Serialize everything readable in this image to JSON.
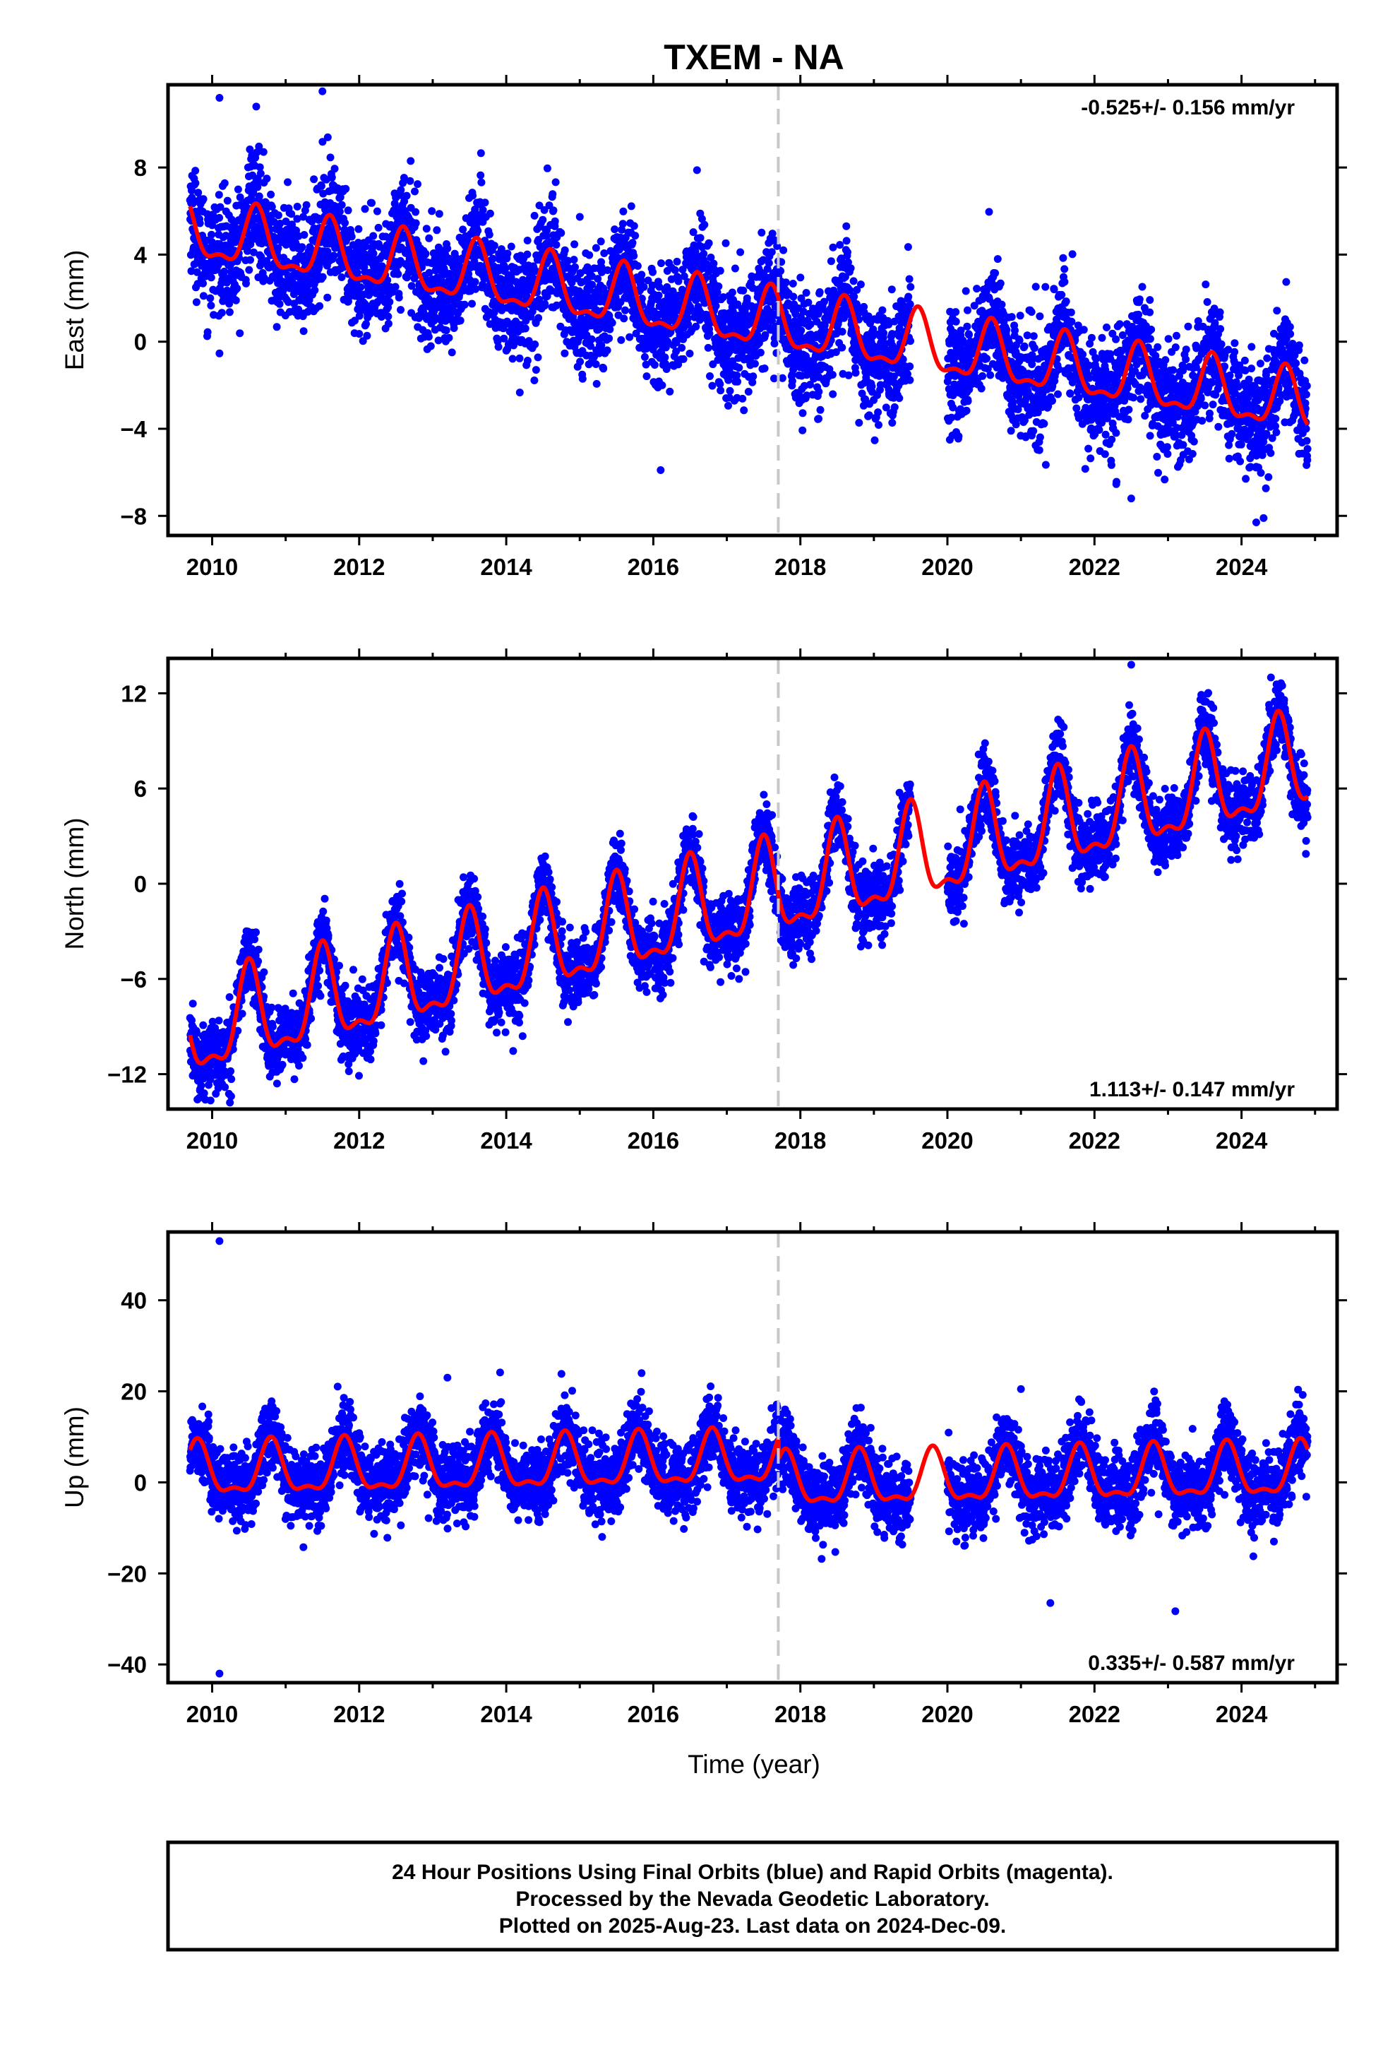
{
  "chart_data": [
    {
      "type": "scatter",
      "title": "TXEM - NA",
      "ylabel": "East (mm)",
      "xlabel": "",
      "xlim": [
        2009.4,
        2025.3
      ],
      "ylim": [
        -8.9,
        11.8
      ],
      "x_ticks": [
        2010,
        2012,
        2014,
        2016,
        2018,
        2020,
        2022,
        2024
      ],
      "y_ticks": [
        -8,
        -4,
        0,
        4,
        8
      ],
      "rate_label": "-0.525+/- 0.156 mm/yr",
      "rate_position": "top-right",
      "grid": false,
      "reference_line_x": 2017.7,
      "series": [
        {
          "name": "Final Orbits",
          "color": "#0000ff",
          "x_range": [
            2009.7,
            2024.9
          ],
          "trend": {
            "value_at_start": 5.0,
            "rate_mm_per_yr": -0.525,
            "seasonal_amplitude": 1.3,
            "peak_phase": 0.6,
            "scatter_sd": 1.3
          },
          "data_gap": [
            2019.5,
            2020.0
          ]
        },
        {
          "name": "Model fit",
          "color": "#ff0000",
          "kind": "line"
        }
      ],
      "outliers": [
        {
          "x": 2010.1,
          "y": 11.2
        },
        {
          "x": 2010.6,
          "y": 10.8
        },
        {
          "x": 2011.5,
          "y": 11.5
        },
        {
          "x": 2012.7,
          "y": 8.3
        },
        {
          "x": 2024.2,
          "y": -8.3
        },
        {
          "x": 2024.3,
          "y": -8.1
        },
        {
          "x": 2022.5,
          "y": -7.2
        },
        {
          "x": 2016.1,
          "y": -5.9
        }
      ]
    },
    {
      "type": "scatter",
      "title": "",
      "ylabel": "North (mm)",
      "xlabel": "",
      "xlim": [
        2009.4,
        2025.3
      ],
      "ylim": [
        -14.2,
        14.2
      ],
      "x_ticks": [
        2010,
        2012,
        2014,
        2016,
        2018,
        2020,
        2022,
        2024
      ],
      "y_ticks": [
        -12,
        -6,
        0,
        6,
        12
      ],
      "rate_label": "1.113+/- 0.147 mm/yr",
      "rate_position": "bottom-right",
      "grid": false,
      "reference_line_x": 2017.7,
      "series": [
        {
          "name": "Final Orbits",
          "color": "#0000ff",
          "x_range": [
            2009.7,
            2024.9
          ],
          "trend": {
            "value_at_start": -9.5,
            "rate_mm_per_yr": 1.113,
            "seasonal_amplitude": 2.8,
            "peak_phase": 0.5,
            "scatter_sd": 1.1
          },
          "data_gap": [
            2019.5,
            2020.0
          ]
        },
        {
          "name": "Model fit",
          "color": "#ff0000",
          "kind": "line"
        }
      ],
      "outliers": [
        {
          "x": 2022.5,
          "y": 13.8
        },
        {
          "x": 2009.8,
          "y": -13.6
        },
        {
          "x": 2024.4,
          "y": 13.0
        }
      ]
    },
    {
      "type": "scatter",
      "title": "",
      "ylabel": "Up (mm)",
      "xlabel": "Time (year)",
      "xlim": [
        2009.4,
        2025.3
      ],
      "ylim": [
        -44,
        55
      ],
      "x_ticks": [
        2010,
        2012,
        2014,
        2016,
        2018,
        2020,
        2022,
        2024
      ],
      "y_ticks": [
        -40,
        -20,
        0,
        20,
        40
      ],
      "rate_label": "0.335+/- 0.587 mm/yr",
      "rate_position": "bottom-right",
      "grid": false,
      "reference_line_x": 2017.7,
      "series": [
        {
          "name": "Final Orbits",
          "color": "#0000ff",
          "x_range": [
            2009.7,
            2024.9
          ],
          "trend": {
            "value_at_start": 2.0,
            "rate_mm_per_yr": 0.335,
            "seasonal_amplitude": 5.5,
            "peak_phase": 0.8,
            "scatter_sd": 4.0,
            "offset_after_reference": -5.0
          },
          "data_gap": [
            2019.5,
            2020.0
          ]
        },
        {
          "name": "Model fit",
          "color": "#ff0000",
          "kind": "line"
        }
      ],
      "outliers": [
        {
          "x": 2010.1,
          "y": 53.0
        },
        {
          "x": 2010.1,
          "y": -42.0
        },
        {
          "x": 2021.0,
          "y": 20.5
        },
        {
          "x": 2021.4,
          "y": -26.5
        },
        {
          "x": 2023.1,
          "y": -28.3
        },
        {
          "x": 2013.2,
          "y": 23.0
        }
      ]
    }
  ],
  "footer": {
    "line1": "24 Hour Positions Using Final Orbits (blue) and Rapid Orbits (magenta).",
    "line2": "Processed by the Nevada Geodetic Laboratory.",
    "line3": "Plotted on 2025-Aug-23. Last data on 2024-Dec-09."
  }
}
